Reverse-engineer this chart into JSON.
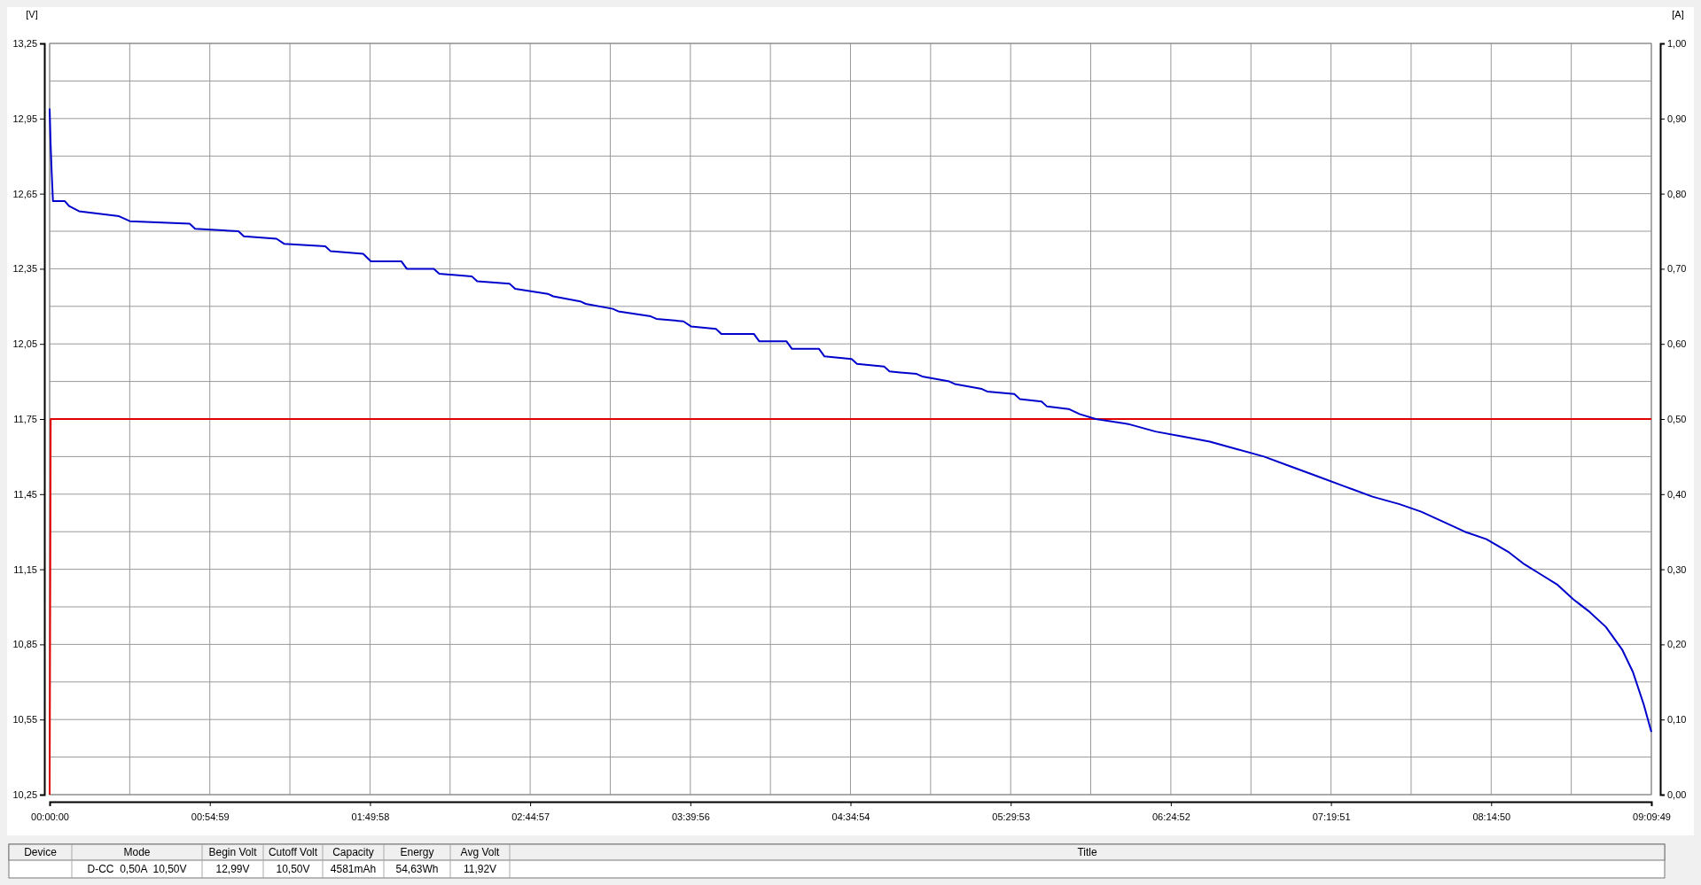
{
  "chart_data": {
    "type": "line",
    "ylabel": "[V]",
    "y2label": "[A]",
    "xlim": [
      0,
      9.1636
    ],
    "xticks": [
      {
        "value": 0,
        "label": "00:00:00"
      },
      {
        "value": 0.4582,
        "label": null
      },
      {
        "value": 0.9164,
        "label": "00:54:59"
      },
      {
        "value": 1.3745,
        "label": null
      },
      {
        "value": 1.8328,
        "label": "01:49:58"
      },
      {
        "value": 2.2909,
        "label": null
      },
      {
        "value": 2.7492,
        "label": "02:44:57"
      },
      {
        "value": 3.2073,
        "label": null
      },
      {
        "value": 3.6656,
        "label": "03:39:56"
      },
      {
        "value": 4.1236,
        "label": null
      },
      {
        "value": 4.5817,
        "label": "04:34:54"
      },
      {
        "value": 5.04,
        "label": null
      },
      {
        "value": 5.4981,
        "label": "05:29:53"
      },
      {
        "value": 5.9563,
        "label": null
      },
      {
        "value": 6.4144,
        "label": "06:24:52"
      },
      {
        "value": 6.8727,
        "label": null
      },
      {
        "value": 7.3308,
        "label": "07:19:51"
      },
      {
        "value": 7.7891,
        "label": null
      },
      {
        "value": 8.2472,
        "label": "08:14:50"
      },
      {
        "value": 8.7054,
        "label": null
      },
      {
        "value": 9.1636,
        "label": "09:09:49"
      }
    ],
    "ylim": [
      10.25,
      13.25
    ],
    "yticks": [
      {
        "value": 10.25,
        "label": "10,25"
      },
      {
        "value": 10.4,
        "label": null
      },
      {
        "value": 10.55,
        "label": "10,55"
      },
      {
        "value": 10.7,
        "label": null
      },
      {
        "value": 10.85,
        "label": "10,85"
      },
      {
        "value": 11,
        "label": null
      },
      {
        "value": 11.15,
        "label": "11,15"
      },
      {
        "value": 11.3,
        "label": null
      },
      {
        "value": 11.45,
        "label": "11,45"
      },
      {
        "value": 11.6,
        "label": null
      },
      {
        "value": 11.75,
        "label": "11,75"
      },
      {
        "value": 11.9,
        "label": null
      },
      {
        "value": 12.05,
        "label": "12,05"
      },
      {
        "value": 12.2,
        "label": null
      },
      {
        "value": 12.35,
        "label": "12,35"
      },
      {
        "value": 12.5,
        "label": null
      },
      {
        "value": 12.65,
        "label": "12,65"
      },
      {
        "value": 12.8,
        "label": null
      },
      {
        "value": 12.95,
        "label": "12,95"
      },
      {
        "value": 13.1,
        "label": null
      },
      {
        "value": 13.25,
        "label": "13,25"
      }
    ],
    "y2lim": [
      0,
      1
    ],
    "y2ticks": [
      {
        "value": 0,
        "label": "0,00"
      },
      {
        "value": 0.05,
        "label": null
      },
      {
        "value": 0.1,
        "label": "0,10"
      },
      {
        "value": 0.15,
        "label": null
      },
      {
        "value": 0.2,
        "label": "0,20"
      },
      {
        "value": 0.25,
        "label": null
      },
      {
        "value": 0.3,
        "label": "0,30"
      },
      {
        "value": 0.35,
        "label": null
      },
      {
        "value": 0.4,
        "label": "0,40"
      },
      {
        "value": 0.45,
        "label": null
      },
      {
        "value": 0.5,
        "label": "0,50"
      },
      {
        "value": 0.55,
        "label": null
      },
      {
        "value": 0.6,
        "label": "0,60"
      },
      {
        "value": 0.65,
        "label": null
      },
      {
        "value": 0.7,
        "label": "0,70"
      },
      {
        "value": 0.75,
        "label": null
      },
      {
        "value": 0.8,
        "label": "0,80"
      },
      {
        "value": 0.85,
        "label": null
      },
      {
        "value": 0.9,
        "label": "0,90"
      },
      {
        "value": 0.95,
        "label": null
      },
      {
        "value": 1,
        "label": "1,00"
      }
    ],
    "grid": true,
    "line_style": "solid",
    "marker": "none",
    "series": [
      {
        "color": "#0000cc",
        "x": [
          0,
          0.006,
          0.012,
          0.019,
          0.087,
          0.112,
          0.168,
          0.397,
          0.459,
          0.801,
          0.832,
          1.08,
          1.111,
          1.298,
          1.341,
          1.577,
          1.608,
          1.794,
          1.838,
          2.012,
          2.043,
          2.198,
          2.229,
          2.415,
          2.446,
          2.632,
          2.663,
          2.85,
          2.881,
          3.036,
          3.067,
          3.222,
          3.253,
          3.439,
          3.471,
          3.626,
          3.669,
          3.812,
          3.843,
          4.029,
          4.06,
          4.216,
          4.247,
          4.402,
          4.433,
          4.588,
          4.619,
          4.774,
          4.805,
          4.96,
          4.992,
          5.147,
          5.178,
          5.333,
          5.364,
          5.519,
          5.55,
          5.675,
          5.706,
          5.83,
          5.892,
          5.985,
          6.171,
          6.327,
          6.482,
          6.637,
          6.792,
          6.947,
          7.103,
          7.258,
          7.413,
          7.568,
          7.723,
          7.847,
          7.972,
          8.096,
          8.22,
          8.344,
          8.437,
          8.53,
          8.623,
          8.717,
          8.81,
          8.903,
          8.996,
          9.058,
          9.12,
          9.1636
        ],
        "values": [
          12.99,
          12.84,
          12.73,
          12.62,
          12.62,
          12.6,
          12.58,
          12.56,
          12.54,
          12.53,
          12.51,
          12.5,
          12.48,
          12.47,
          12.45,
          12.44,
          12.42,
          12.41,
          12.38,
          12.38,
          12.35,
          12.35,
          12.33,
          12.32,
          12.3,
          12.29,
          12.27,
          12.25,
          12.24,
          12.22,
          12.21,
          12.19,
          12.18,
          12.16,
          12.15,
          12.14,
          12.12,
          12.11,
          12.09,
          12.09,
          12.06,
          12.06,
          12.03,
          12.03,
          12,
          11.99,
          11.97,
          11.96,
          11.94,
          11.93,
          11.92,
          11.9,
          11.89,
          11.87,
          11.86,
          11.85,
          11.83,
          11.82,
          11.8,
          11.79,
          11.77,
          11.75,
          11.73,
          11.7,
          11.68,
          11.66,
          11.63,
          11.6,
          11.56,
          11.52,
          11.48,
          11.44,
          11.41,
          11.38,
          11.34,
          11.3,
          11.27,
          11.22,
          11.17,
          11.13,
          11.09,
          11.03,
          10.98,
          10.92,
          10.83,
          10.74,
          10.61,
          10.5
        ]
      },
      {
        "color": "#e00000",
        "axis": "y2",
        "x": [
          0,
          0.006,
          9.1636
        ],
        "values": [
          0,
          0.5,
          0.5
        ]
      }
    ],
    "annotations": [
      "Device",
      "Mode",
      "Begin Volt",
      "Cutoff Volt",
      "Capacity",
      "Energy",
      "Avg Volt",
      "Title",
      "D-CC  0,50A  10,50V",
      "12,99V",
      "10,50V",
      "4581mAh",
      "54,63Wh",
      "11,92V"
    ]
  }
}
